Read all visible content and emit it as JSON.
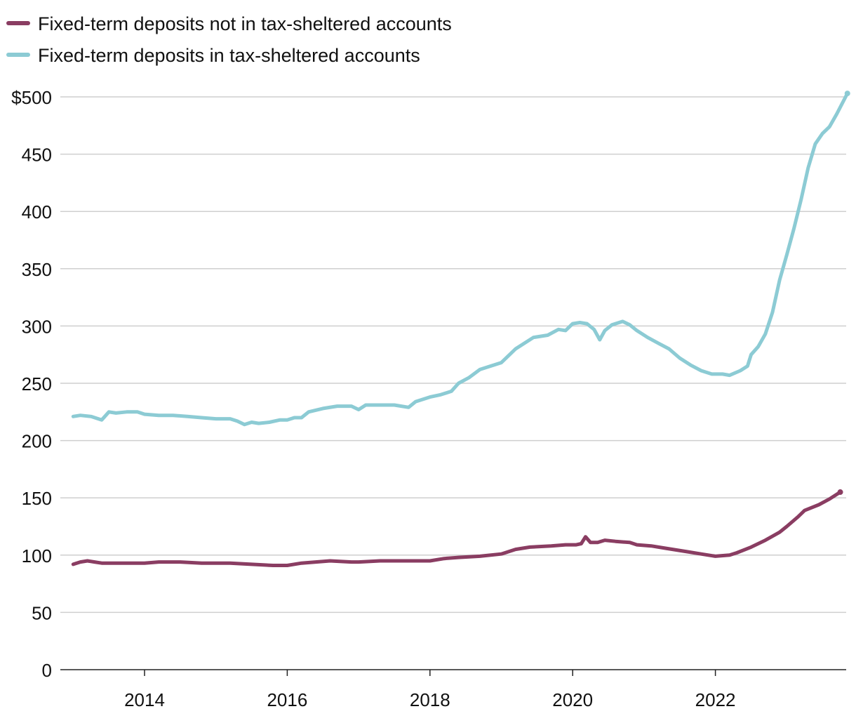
{
  "chart_data": {
    "type": "line",
    "title": "",
    "xlabel": "",
    "ylabel": "",
    "ylim": [
      0,
      500
    ],
    "xlim": [
      2013.0,
      2023.9
    ],
    "grid": true,
    "legend_position": "top-left",
    "y_ticks": [
      {
        "value": 500,
        "label": "$500"
      },
      {
        "value": 450,
        "label": "450"
      },
      {
        "value": 400,
        "label": "400"
      },
      {
        "value": 350,
        "label": "350"
      },
      {
        "value": 300,
        "label": "300"
      },
      {
        "value": 250,
        "label": "250"
      },
      {
        "value": 200,
        "label": "200"
      },
      {
        "value": 150,
        "label": "150"
      },
      {
        "value": 100,
        "label": "100"
      },
      {
        "value": 50,
        "label": "50"
      },
      {
        "value": 0,
        "label": "0"
      }
    ],
    "x_ticks": [
      {
        "value": 2014,
        "label": "2014"
      },
      {
        "value": 2016,
        "label": "2016"
      },
      {
        "value": 2018,
        "label": "2018"
      },
      {
        "value": 2020,
        "label": "2020"
      },
      {
        "value": 2022,
        "label": "2022"
      }
    ],
    "series": [
      {
        "name": "Fixed-term deposits not in tax-sheltered accounts",
        "color": "#8a3d62",
        "points": [
          [
            2013.0,
            92
          ],
          [
            2013.1,
            94
          ],
          [
            2013.2,
            95
          ],
          [
            2013.3,
            94
          ],
          [
            2013.4,
            93
          ],
          [
            2013.6,
            93
          ],
          [
            2013.8,
            93
          ],
          [
            2014.0,
            93
          ],
          [
            2014.2,
            94
          ],
          [
            2014.5,
            94
          ],
          [
            2014.8,
            93
          ],
          [
            2015.0,
            93
          ],
          [
            2015.2,
            93
          ],
          [
            2015.5,
            92
          ],
          [
            2015.8,
            91
          ],
          [
            2016.0,
            91
          ],
          [
            2016.2,
            93
          ],
          [
            2016.4,
            94
          ],
          [
            2016.6,
            95
          ],
          [
            2016.9,
            94
          ],
          [
            2017.0,
            94
          ],
          [
            2017.3,
            95
          ],
          [
            2017.7,
            95
          ],
          [
            2018.0,
            95
          ],
          [
            2018.2,
            97
          ],
          [
            2018.4,
            98
          ],
          [
            2018.7,
            99
          ],
          [
            2019.0,
            101
          ],
          [
            2019.2,
            105
          ],
          [
            2019.4,
            107
          ],
          [
            2019.7,
            108
          ],
          [
            2019.9,
            109
          ],
          [
            2020.05,
            109
          ],
          [
            2020.12,
            110
          ],
          [
            2020.18,
            116
          ],
          [
            2020.25,
            111
          ],
          [
            2020.35,
            111
          ],
          [
            2020.45,
            113
          ],
          [
            2020.6,
            112
          ],
          [
            2020.8,
            111
          ],
          [
            2020.9,
            109
          ],
          [
            2021.1,
            108
          ],
          [
            2021.3,
            106
          ],
          [
            2021.6,
            103
          ],
          [
            2021.8,
            101
          ],
          [
            2022.0,
            99
          ],
          [
            2022.2,
            100
          ],
          [
            2022.3,
            102
          ],
          [
            2022.5,
            107
          ],
          [
            2022.7,
            113
          ],
          [
            2022.9,
            120
          ],
          [
            2023.0,
            125
          ],
          [
            2023.15,
            133
          ],
          [
            2023.25,
            139
          ],
          [
            2023.45,
            144
          ],
          [
            2023.6,
            149
          ],
          [
            2023.75,
            155
          ]
        ]
      },
      {
        "name": "Fixed-term deposits in tax-sheltered accounts",
        "color": "#8ccbd4",
        "points": [
          [
            2013.0,
            221
          ],
          [
            2013.1,
            222
          ],
          [
            2013.25,
            221
          ],
          [
            2013.4,
            218
          ],
          [
            2013.5,
            225
          ],
          [
            2013.6,
            224
          ],
          [
            2013.75,
            225
          ],
          [
            2013.9,
            225
          ],
          [
            2014.0,
            223
          ],
          [
            2014.2,
            222
          ],
          [
            2014.4,
            222
          ],
          [
            2014.6,
            221
          ],
          [
            2014.8,
            220
          ],
          [
            2015.0,
            219
          ],
          [
            2015.2,
            219
          ],
          [
            2015.3,
            217
          ],
          [
            2015.4,
            214
          ],
          [
            2015.5,
            216
          ],
          [
            2015.6,
            215
          ],
          [
            2015.75,
            216
          ],
          [
            2015.9,
            218
          ],
          [
            2016.0,
            218
          ],
          [
            2016.1,
            220
          ],
          [
            2016.2,
            220
          ],
          [
            2016.3,
            225
          ],
          [
            2016.5,
            228
          ],
          [
            2016.7,
            230
          ],
          [
            2016.9,
            230
          ],
          [
            2017.0,
            227
          ],
          [
            2017.1,
            231
          ],
          [
            2017.3,
            231
          ],
          [
            2017.5,
            231
          ],
          [
            2017.7,
            229
          ],
          [
            2017.8,
            234
          ],
          [
            2018.0,
            238
          ],
          [
            2018.15,
            240
          ],
          [
            2018.3,
            243
          ],
          [
            2018.4,
            250
          ],
          [
            2018.55,
            255
          ],
          [
            2018.7,
            262
          ],
          [
            2018.85,
            265
          ],
          [
            2019.0,
            268
          ],
          [
            2019.2,
            280
          ],
          [
            2019.45,
            290
          ],
          [
            2019.65,
            292
          ],
          [
            2019.8,
            297
          ],
          [
            2019.9,
            296
          ],
          [
            2020.0,
            302
          ],
          [
            2020.1,
            303
          ],
          [
            2020.2,
            302
          ],
          [
            2020.3,
            297
          ],
          [
            2020.38,
            288
          ],
          [
            2020.45,
            296
          ],
          [
            2020.55,
            301
          ],
          [
            2020.7,
            304
          ],
          [
            2020.8,
            301
          ],
          [
            2020.9,
            296
          ],
          [
            2021.05,
            290
          ],
          [
            2021.2,
            285
          ],
          [
            2021.35,
            280
          ],
          [
            2021.5,
            272
          ],
          [
            2021.65,
            266
          ],
          [
            2021.8,
            261
          ],
          [
            2021.95,
            258
          ],
          [
            2022.1,
            258
          ],
          [
            2022.2,
            257
          ],
          [
            2022.35,
            261
          ],
          [
            2022.45,
            265
          ],
          [
            2022.5,
            275
          ],
          [
            2022.6,
            282
          ],
          [
            2022.7,
            293
          ],
          [
            2022.8,
            312
          ],
          [
            2022.9,
            340
          ],
          [
            2023.0,
            362
          ],
          [
            2023.1,
            385
          ],
          [
            2023.2,
            410
          ],
          [
            2023.3,
            438
          ],
          [
            2023.4,
            459
          ],
          [
            2023.5,
            468
          ],
          [
            2023.6,
            474
          ],
          [
            2023.7,
            485
          ],
          [
            2023.85,
            503
          ]
        ]
      }
    ]
  }
}
